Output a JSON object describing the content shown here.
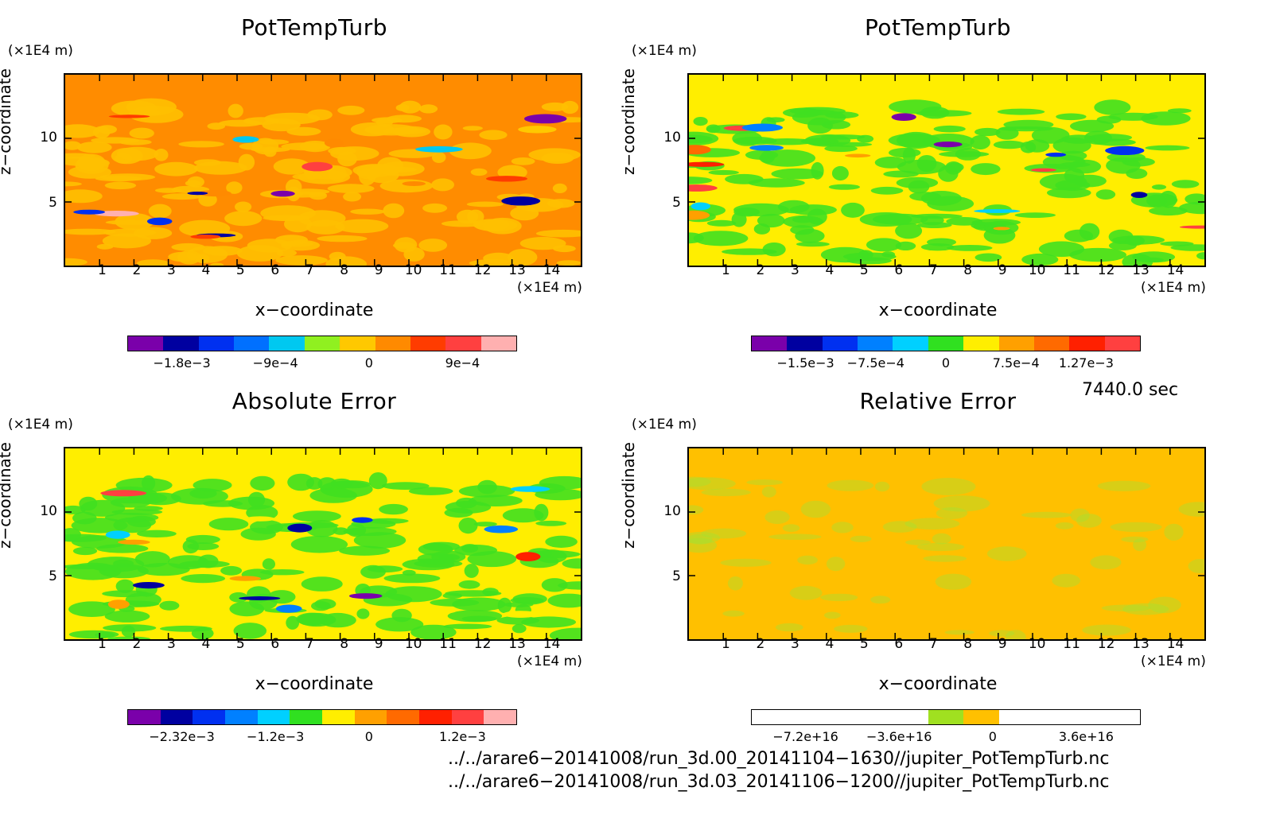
{
  "chart_data": [
    {
      "type": "heatmap",
      "title": "PotTempTurb",
      "xlabel": "x−coordinate",
      "ylabel": "z−coordinate",
      "x_unit": "(×1E4 m)",
      "y_unit": "(×1E4 m)",
      "xlim": [
        0,
        15
      ],
      "ylim": [
        0,
        15
      ],
      "x_ticks": [
        "1",
        "2",
        "3",
        "4",
        "5",
        "6",
        "7",
        "8",
        "9",
        "10",
        "11",
        "12",
        "13",
        "14"
      ],
      "y_ticks": [
        "5",
        "10"
      ],
      "colorbar": {
        "colors": [
          "#7a00aa",
          "#0000a0",
          "#0030f0",
          "#0070ff",
          "#00c8f0",
          "#90f020",
          "#ffc800",
          "#ff8a00",
          "#ff3c00",
          "#ff4040",
          "#ffb0b0"
        ],
        "labels": [
          "−1.8e−3",
          "−9e−4",
          "0",
          "9e−4"
        ]
      },
      "background": "#ff8c00",
      "foreground": "#ffc000"
    },
    {
      "type": "heatmap",
      "title": "PotTempTurb",
      "xlabel": "x−coordinate",
      "ylabel": "z−coordinate",
      "x_unit": "(×1E4 m)",
      "y_unit": "(×1E4 m)",
      "xlim": [
        0,
        15
      ],
      "ylim": [
        0,
        15
      ],
      "x_ticks": [
        "1",
        "2",
        "3",
        "4",
        "5",
        "6",
        "7",
        "8",
        "9",
        "10",
        "11",
        "12",
        "13",
        "14"
      ],
      "y_ticks": [
        "5",
        "10"
      ],
      "colorbar": {
        "colors": [
          "#7a00aa",
          "#0000a0",
          "#0030f0",
          "#0080ff",
          "#00d0ff",
          "#30e020",
          "#ffee00",
          "#ffa000",
          "#ff6a00",
          "#ff2000",
          "#ff4040"
        ],
        "labels": [
          "−1.5e−3",
          "−7.5e−4",
          "0",
          "7.5e−4",
          "1.27e−3"
        ]
      },
      "background": "#ffee00",
      "foreground": "#40e020"
    },
    {
      "type": "heatmap",
      "title": "Absolute Error",
      "xlabel": "x−coordinate",
      "ylabel": "z−coordinate",
      "x_unit": "(×1E4 m)",
      "y_unit": "(×1E4 m)",
      "xlim": [
        0,
        15
      ],
      "ylim": [
        0,
        15
      ],
      "x_ticks": [
        "1",
        "2",
        "3",
        "4",
        "5",
        "6",
        "7",
        "8",
        "9",
        "10",
        "11",
        "12",
        "13",
        "14"
      ],
      "y_ticks": [
        "5",
        "10"
      ],
      "colorbar": {
        "colors": [
          "#7a00aa",
          "#0000a0",
          "#0030f0",
          "#0080ff",
          "#00d0ff",
          "#30e020",
          "#ffee00",
          "#ffa000",
          "#ff6a00",
          "#ff2000",
          "#ff4040",
          "#ffb0b0"
        ],
        "labels": [
          "−2.32e−3",
          "−1.2e−3",
          "0",
          "1.2e−3"
        ]
      },
      "background": "#ffee00",
      "foreground": "#40e020"
    },
    {
      "type": "heatmap",
      "title": "Relative Error",
      "xlabel": "x−coordinate",
      "ylabel": "z−coordinate",
      "x_unit": "(×1E4 m)",
      "y_unit": "(×1E4 m)",
      "xlim": [
        0,
        15
      ],
      "ylim": [
        0,
        15
      ],
      "x_ticks": [
        "1",
        "2",
        "3",
        "4",
        "5",
        "6",
        "7",
        "8",
        "9",
        "10",
        "11",
        "12",
        "13",
        "14"
      ],
      "y_ticks": [
        "5",
        "10"
      ],
      "colorbar": {
        "colors": [
          "#ffffff",
          "#ffffff",
          "#ffffff",
          "#ffffff",
          "#ffffff",
          "#a0e020",
          "#ffc000",
          "#ffffff",
          "#ffffff",
          "#ffffff",
          "#ffffff"
        ],
        "labels": [
          "−7.2e+16",
          "−3.6e+16",
          "0",
          "3.6e+16"
        ]
      },
      "background": "#ffc000",
      "foreground": "#a8e030"
    }
  ],
  "time_label": "7440.0 sec",
  "files": [
    "../../arare6−20141008/run_3d.00_20141104−1630//jupiter_PotTempTurb.nc",
    "../../arare6−20141008/run_3d.03_20141106−1200//jupiter_PotTempTurb.nc"
  ]
}
